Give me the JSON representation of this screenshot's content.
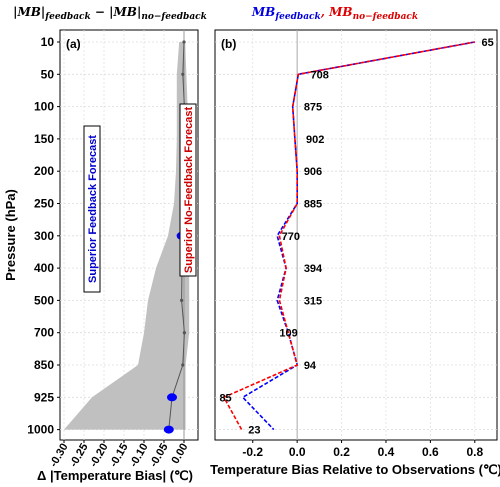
{
  "figure": {
    "pressure_axis_label": "Pressure (hPa)",
    "pressure_levels": [
      "10",
      "50",
      "100",
      "150",
      "200",
      "250",
      "300",
      "400",
      "500",
      "700",
      "850",
      "925",
      "1000"
    ]
  },
  "chart_data": [
    {
      "type": "line",
      "panel_label": "(a)",
      "title_parts": [
        "|MB|",
        "feedback",
        " − |MB|",
        "no−feedback"
      ],
      "xlabel": "Δ |Temperature Bias| (℃)",
      "ylabel": "Pressure (hPa)",
      "xlim": [
        -0.31,
        0.035
      ],
      "xticks": [
        "-0.30",
        "-0.25",
        "-0.20",
        "-0.15",
        "-0.10",
        "-0.05",
        "0.00"
      ],
      "xtick_values": [
        -0.3,
        -0.25,
        -0.2,
        -0.15,
        -0.1,
        -0.05,
        0.0
      ],
      "categories": [
        "10",
        "50",
        "100",
        "150",
        "200",
        "250",
        "300",
        "400",
        "500",
        "700",
        "850",
        "925",
        "1000"
      ],
      "series": [
        {
          "values": [
            0.0,
            -0.003,
            0.001,
            0.0,
            0.0,
            0.0,
            -0.006,
            -0.005,
            -0.006,
            0.001,
            -0.003,
            -0.03,
            -0.038
          ],
          "lower": [
            -0.012,
            -0.018,
            -0.018,
            -0.018,
            -0.02,
            -0.025,
            -0.04,
            -0.07,
            -0.09,
            -0.1,
            -0.115,
            -0.23,
            -0.3
          ],
          "upper": [
            0.003,
            0.006,
            0.009,
            0.009,
            0.009,
            0.009,
            0.013,
            0.013,
            0.013,
            0.013,
            0.004,
            0.004,
            0.004
          ],
          "significant": [
            false,
            false,
            false,
            false,
            false,
            false,
            true,
            false,
            false,
            false,
            false,
            true,
            true
          ],
          "color": "#555555",
          "band_color": "#c0c0c0",
          "marker_color": "#0000ff"
        }
      ],
      "annotations": [
        "Superior Feedback Forecast",
        "Superior No-Feedback Forecast"
      ],
      "annotation_colors": [
        "#0000cc",
        "#cc0000"
      ],
      "grid": true
    },
    {
      "type": "line",
      "panel_label": "(b)",
      "title_parts": [
        "MB",
        "feedback",
        ", ",
        "MB",
        "no−feedback"
      ],
      "title_colors": [
        "#0000dd",
        "#dd0000"
      ],
      "xlabel": "Temperature Bias Relative to Observations (℃)",
      "xlim": [
        -0.37,
        0.9
      ],
      "xticks": [
        "-0.2",
        "0.0",
        "0.2",
        "0.4",
        "0.6",
        "0.8"
      ],
      "xtick_values": [
        -0.2,
        0.0,
        0.2,
        0.4,
        0.6,
        0.8
      ],
      "categories": [
        "10",
        "50",
        "100",
        "150",
        "200",
        "250",
        "300",
        "400",
        "500",
        "700",
        "850",
        "925",
        "1000"
      ],
      "series": [
        {
          "values": [
            0.8,
            0.005,
            -0.02,
            -0.01,
            0.0,
            0.0,
            -0.09,
            -0.05,
            -0.09,
            -0.04,
            0.0,
            -0.245,
            -0.105
          ],
          "color": "#0000ff"
        },
        {
          "values": [
            0.8,
            0.005,
            -0.02,
            -0.01,
            0.0,
            0.0,
            -0.08,
            -0.05,
            -0.08,
            -0.04,
            0.0,
            -0.33,
            -0.25
          ],
          "color": "#ff0000"
        }
      ],
      "counts": [
        "65",
        "708",
        "875",
        "902",
        "906",
        "885",
        "770",
        "394",
        "315",
        "109",
        "94",
        "85",
        "23"
      ],
      "count_x": [
        0.83,
        0.06,
        0.03,
        0.04,
        0.03,
        0.03,
        -0.07,
        0.03,
        0.03,
        -0.08,
        0.03,
        -0.35,
        -0.22
      ],
      "grid": true
    }
  ]
}
